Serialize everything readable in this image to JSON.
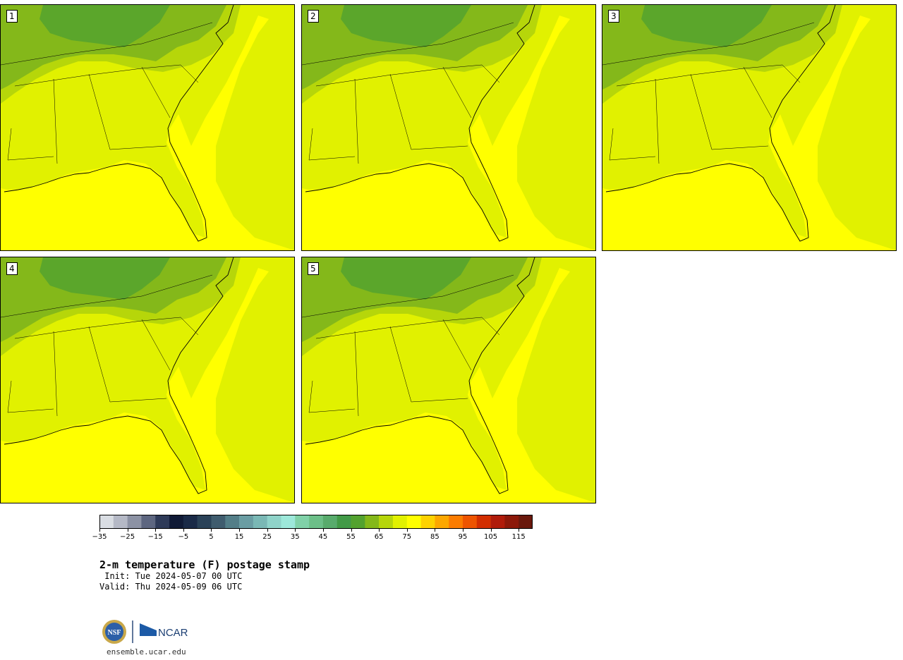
{
  "panels": [
    {
      "label": "1"
    },
    {
      "label": "2"
    },
    {
      "label": "3"
    },
    {
      "label": "4"
    },
    {
      "label": "5"
    }
  ],
  "colorbar": {
    "ticks": [
      "−35",
      "−25",
      "−15",
      "−5",
      "5",
      "15",
      "25",
      "35",
      "45",
      "55",
      "65",
      "75",
      "85",
      "95",
      "105",
      "115"
    ],
    "colors": [
      "#d9dde3",
      "#b5b9c6",
      "#8c92a4",
      "#5d6680",
      "#2e3a58",
      "#101a36",
      "#1a2a47",
      "#2a4258",
      "#3f5c6e",
      "#537e88",
      "#6a9da3",
      "#7ab8b5",
      "#8fd3c9",
      "#9de8da",
      "#80d1a8",
      "#6cbf88",
      "#58ab6c",
      "#429a47",
      "#53a22f",
      "#84b81a",
      "#b6d60a",
      "#e1f100",
      "#ffff00",
      "#fdd200",
      "#fca700",
      "#fb7c00",
      "#ee5400",
      "#d22e00",
      "#b01b0a",
      "#8c1809",
      "#6a180c"
    ]
  },
  "text": {
    "title": "2-m temperature (F) postage stamp",
    "init": " Init: Tue 2024-05-07 00 UTC",
    "valid": "Valid: Thu 2024-05-09 06 UTC",
    "url": "ensemble.ucar.edu",
    "logo_nsf": "NSF",
    "logo_ncar": "NCAR"
  },
  "colors": {
    "ocean_yellow": "#ffff00",
    "land_light": "#e1f100",
    "land_mid": "#b6d60a",
    "land_green": "#84b81a",
    "land_dark": "#53a22f",
    "warm_orange": "#fdd200"
  }
}
